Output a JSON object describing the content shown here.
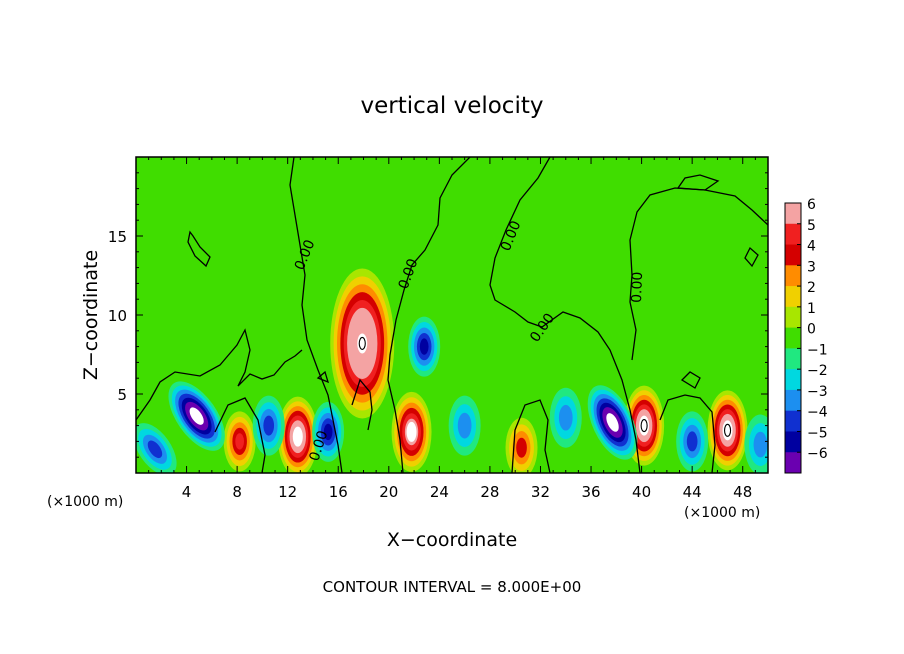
{
  "chart_data": {
    "type": "heatmap",
    "title": "vertical velocity",
    "xlabel": "X−coordinate",
    "ylabel": "Z−coordinate",
    "x_unit_left": "(×1000 m)",
    "x_unit_right": "(×1000 m)",
    "xlim": [
      0,
      50
    ],
    "ylim": [
      0,
      20
    ],
    "x_ticks": [
      4,
      8,
      12,
      16,
      20,
      24,
      28,
      32,
      36,
      40,
      44,
      48
    ],
    "y_ticks": [
      5,
      10,
      15
    ],
    "colorbar": {
      "levels": [
        6,
        5,
        4,
        3,
        2,
        1,
        0,
        -1,
        -2,
        -3,
        -4,
        -5,
        -6
      ],
      "labels": [
        "6",
        "5",
        "4",
        "3",
        "2",
        "1",
        "0",
        "−1",
        "−2",
        "−3",
        "−4",
        "−5",
        "−6"
      ],
      "colors": [
        "#f4a3a3",
        "#f02020",
        "#d40000",
        "#ff8c00",
        "#f0d000",
        "#a8e600",
        "#40dd00",
        "#20e880",
        "#00d8e0",
        "#1c8ff0",
        "#1030d0",
        "#0000a0",
        "#6a00b0"
      ]
    },
    "contour_label": "0.00",
    "footer": "CONTOUR INTERVAL = 8.000E+00",
    "features": [
      {
        "x": 17.9,
        "z": 8.2,
        "w": 8.5,
        "kind": "updraft"
      },
      {
        "x": 12.8,
        "z": 2.3,
        "w": 7.2,
        "kind": "updraft"
      },
      {
        "x": 8.2,
        "z": 2.0,
        "w": 4.8,
        "kind": "updraft"
      },
      {
        "x": 21.8,
        "z": 2.6,
        "w": 6.5,
        "kind": "updraft"
      },
      {
        "x": 40.2,
        "z": 3.0,
        "w": 7.8,
        "kind": "updraft"
      },
      {
        "x": 46.8,
        "z": 2.7,
        "w": 7.8,
        "kind": "updraft"
      },
      {
        "x": 30.5,
        "z": 1.6,
        "w": 3.5,
        "kind": "updraft"
      },
      {
        "x": 4.8,
        "z": 3.6,
        "w": -7.5,
        "kind": "downdraft"
      },
      {
        "x": 37.7,
        "z": 3.2,
        "w": -7.5,
        "kind": "downdraft"
      },
      {
        "x": 22.8,
        "z": 8.0,
        "w": -4.5,
        "kind": "downdraft"
      },
      {
        "x": 15.2,
        "z": 2.6,
        "w": -4.5,
        "kind": "downdraft"
      },
      {
        "x": 10.5,
        "z": 3.0,
        "w": -3.5,
        "kind": "downdraft"
      },
      {
        "x": 1.5,
        "z": 1.5,
        "w": -3.5,
        "kind": "downdraft"
      },
      {
        "x": 44.0,
        "z": 2.0,
        "w": -3.2,
        "kind": "downdraft"
      },
      {
        "x": 34.0,
        "z": 3.5,
        "w": -3.0,
        "kind": "downdraft"
      },
      {
        "x": 26.0,
        "z": 3.0,
        "w": -2.5,
        "kind": "downdraft"
      },
      {
        "x": 49.4,
        "z": 1.8,
        "w": -3.0,
        "kind": "downdraft"
      }
    ]
  }
}
